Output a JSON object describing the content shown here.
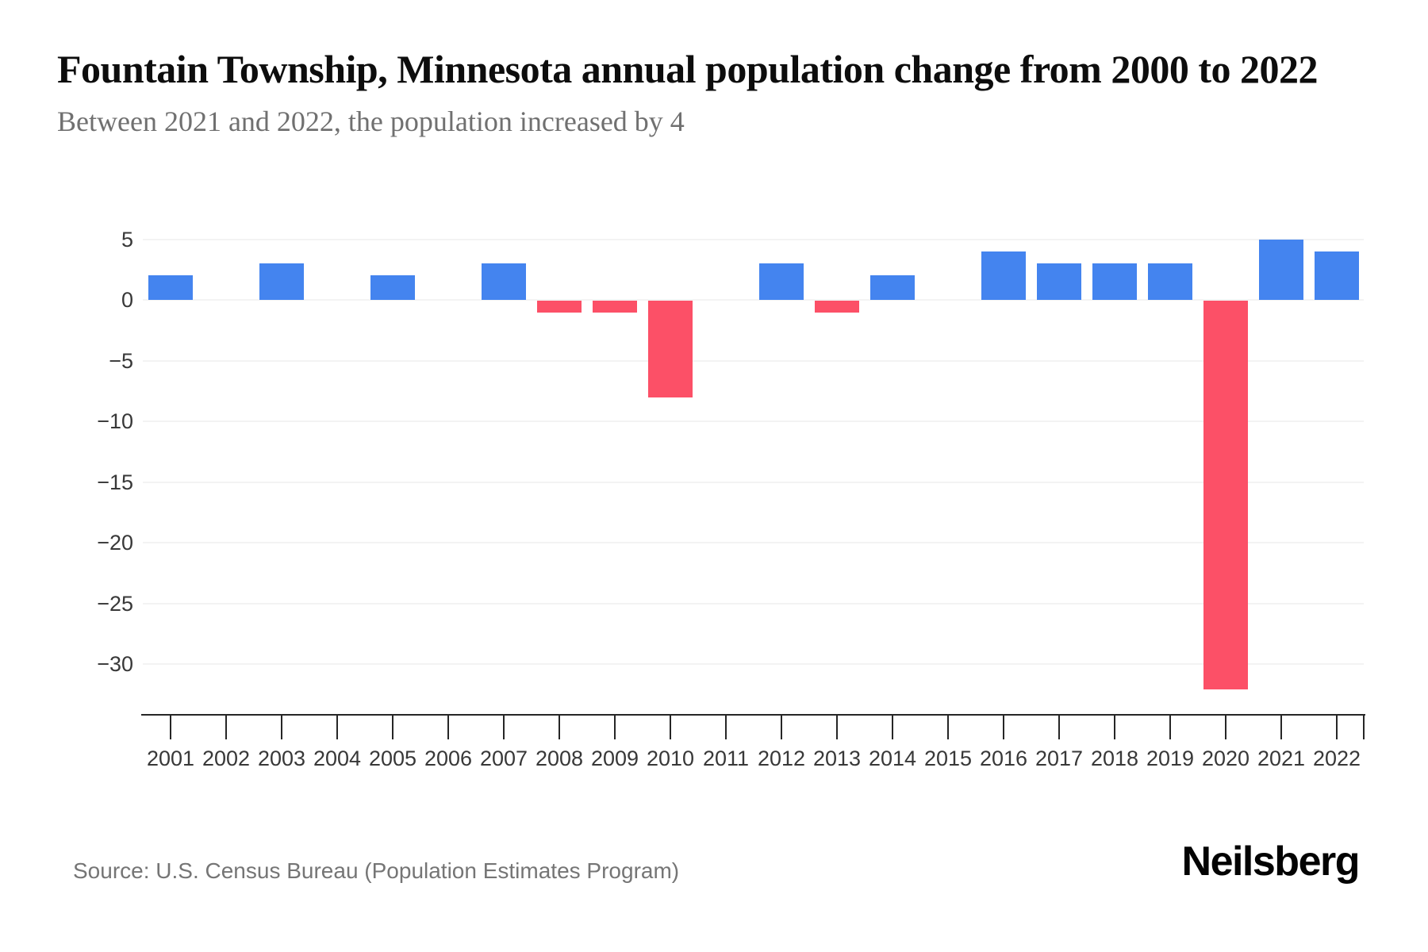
{
  "page": {
    "title": "Fountain Township, Minnesota annual population change from 2000 to 2022",
    "subtitle": "Between 2021 and 2022, the population increased by 4",
    "source": "Source: U.S. Census Bureau (Population Estimates Program)",
    "brand": "Neilsberg"
  },
  "chart_data": {
    "type": "bar",
    "title": "Fountain Township, Minnesota annual population change from 2000 to 2022",
    "subtitle": "Between 2021 and 2022, the population increased by 4",
    "categories": [
      "2001",
      "2002",
      "2003",
      "2004",
      "2005",
      "2006",
      "2007",
      "2008",
      "2009",
      "2010",
      "2011",
      "2012",
      "2013",
      "2014",
      "2015",
      "2016",
      "2017",
      "2018",
      "2019",
      "2020",
      "2021",
      "2022"
    ],
    "values": [
      2,
      0,
      3,
      0,
      2,
      0,
      3,
      -1,
      -1,
      -8,
      0,
      3,
      -1,
      2,
      0,
      4,
      3,
      3,
      3,
      -32,
      5,
      4
    ],
    "xlabel": "",
    "ylabel": "",
    "yticks": [
      5,
      0,
      -5,
      -10,
      -15,
      -20,
      -25,
      -30
    ],
    "ytick_labels": [
      "5",
      "0",
      "−5",
      "−10",
      "−15",
      "−20",
      "−25",
      "−30"
    ],
    "ylim": [
      -34,
      6
    ],
    "grid": true,
    "legend": false,
    "colors": {
      "positive": "#4484EF",
      "negative": "#FC5067"
    },
    "source": "U.S. Census Bureau (Population Estimates Program)"
  }
}
